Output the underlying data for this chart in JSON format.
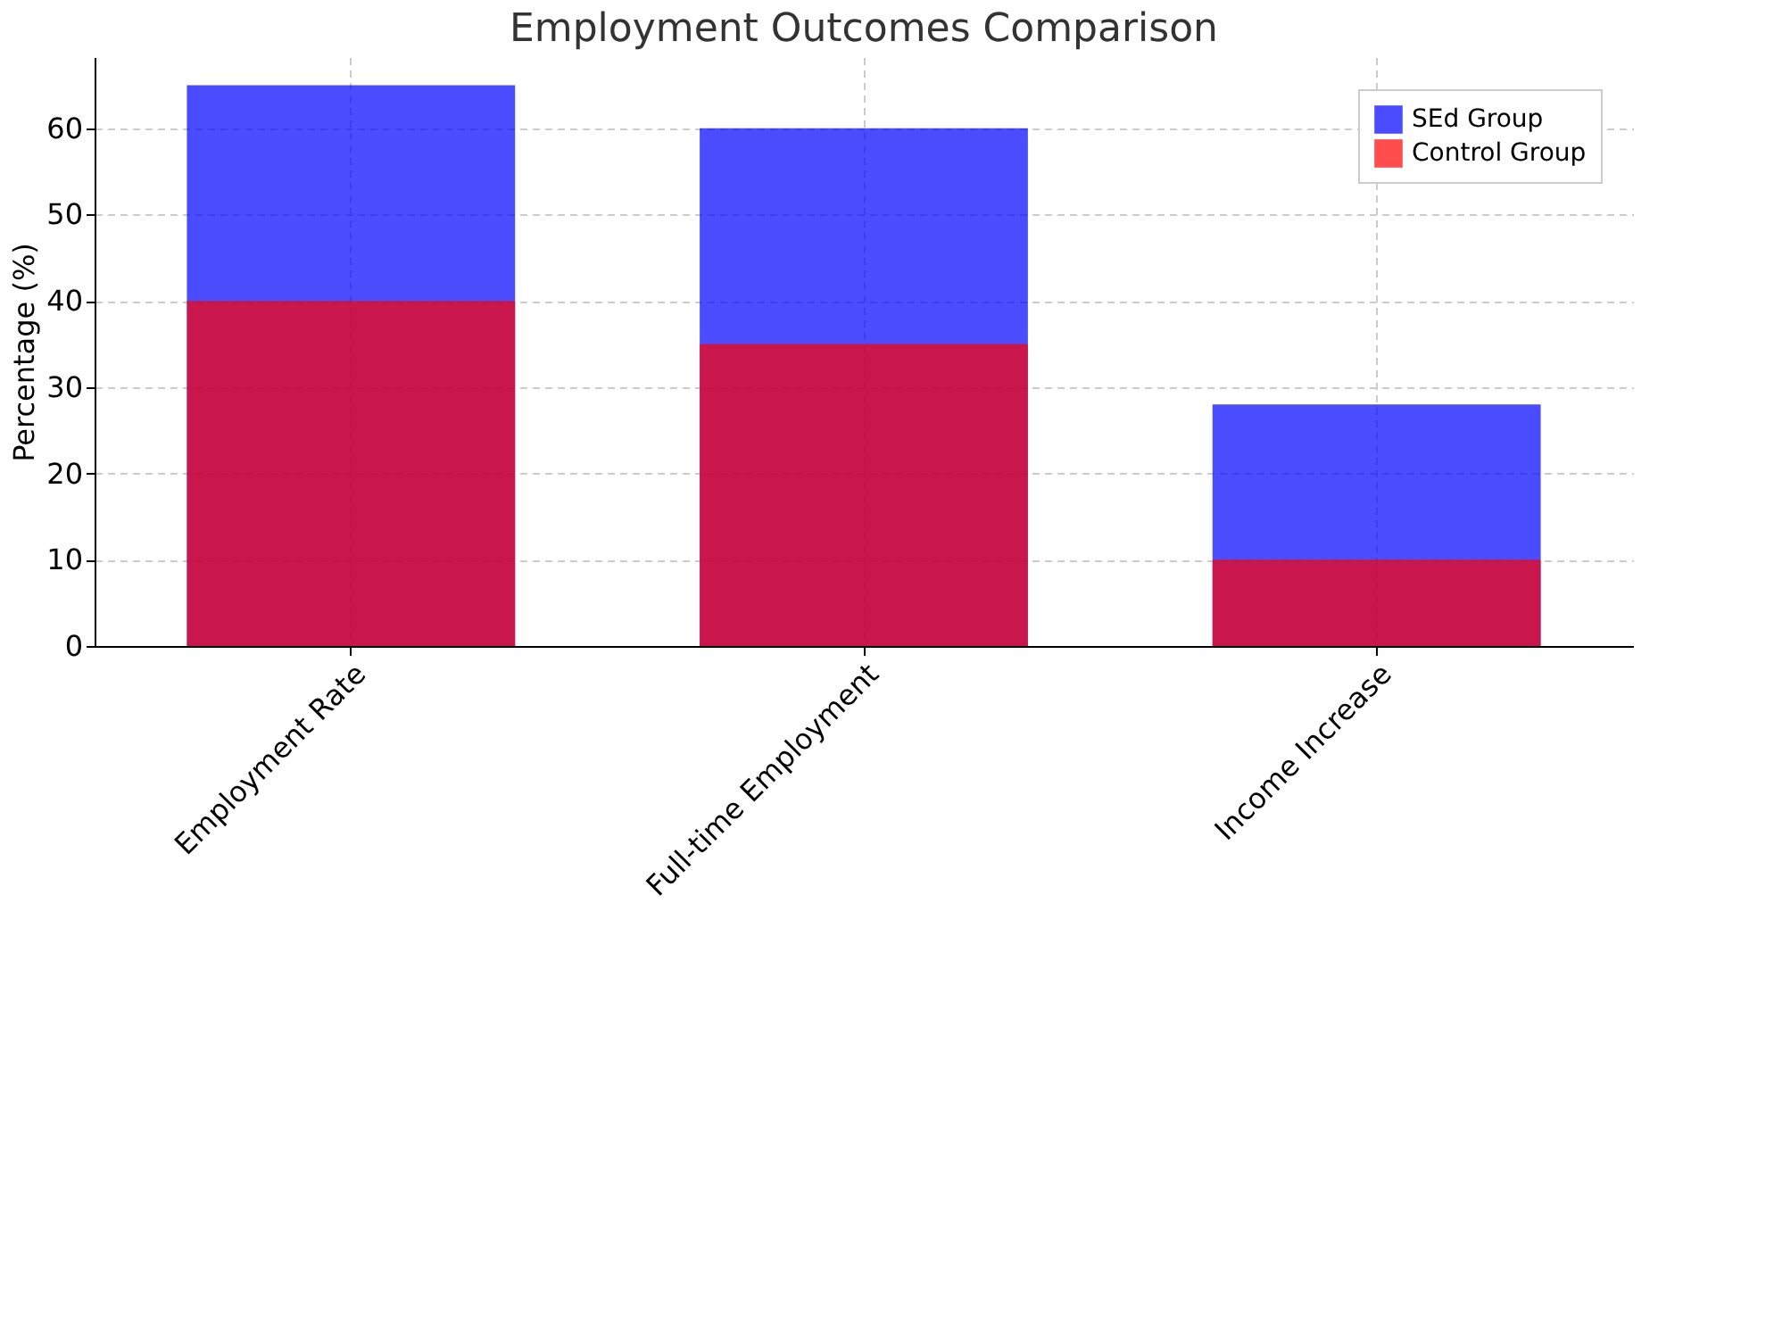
{
  "chart_data": {
    "type": "bar",
    "title": "Employment Outcomes Comparison",
    "ylabel": "Percentage (%)",
    "categories": [
      "Employment Rate",
      "Full-time Employment",
      "Income Increase"
    ],
    "series": [
      {
        "name": "SEd Group",
        "color": "#0000ff",
        "values": [
          65,
          60,
          28
        ]
      },
      {
        "name": "Control Group",
        "color": "#ff0000",
        "values": [
          40,
          35,
          10
        ]
      }
    ],
    "ylim": [
      0,
      68.25
    ],
    "yticks": [
      0,
      10,
      20,
      30,
      40,
      50,
      60
    ],
    "grid": true,
    "legend": "top right"
  }
}
